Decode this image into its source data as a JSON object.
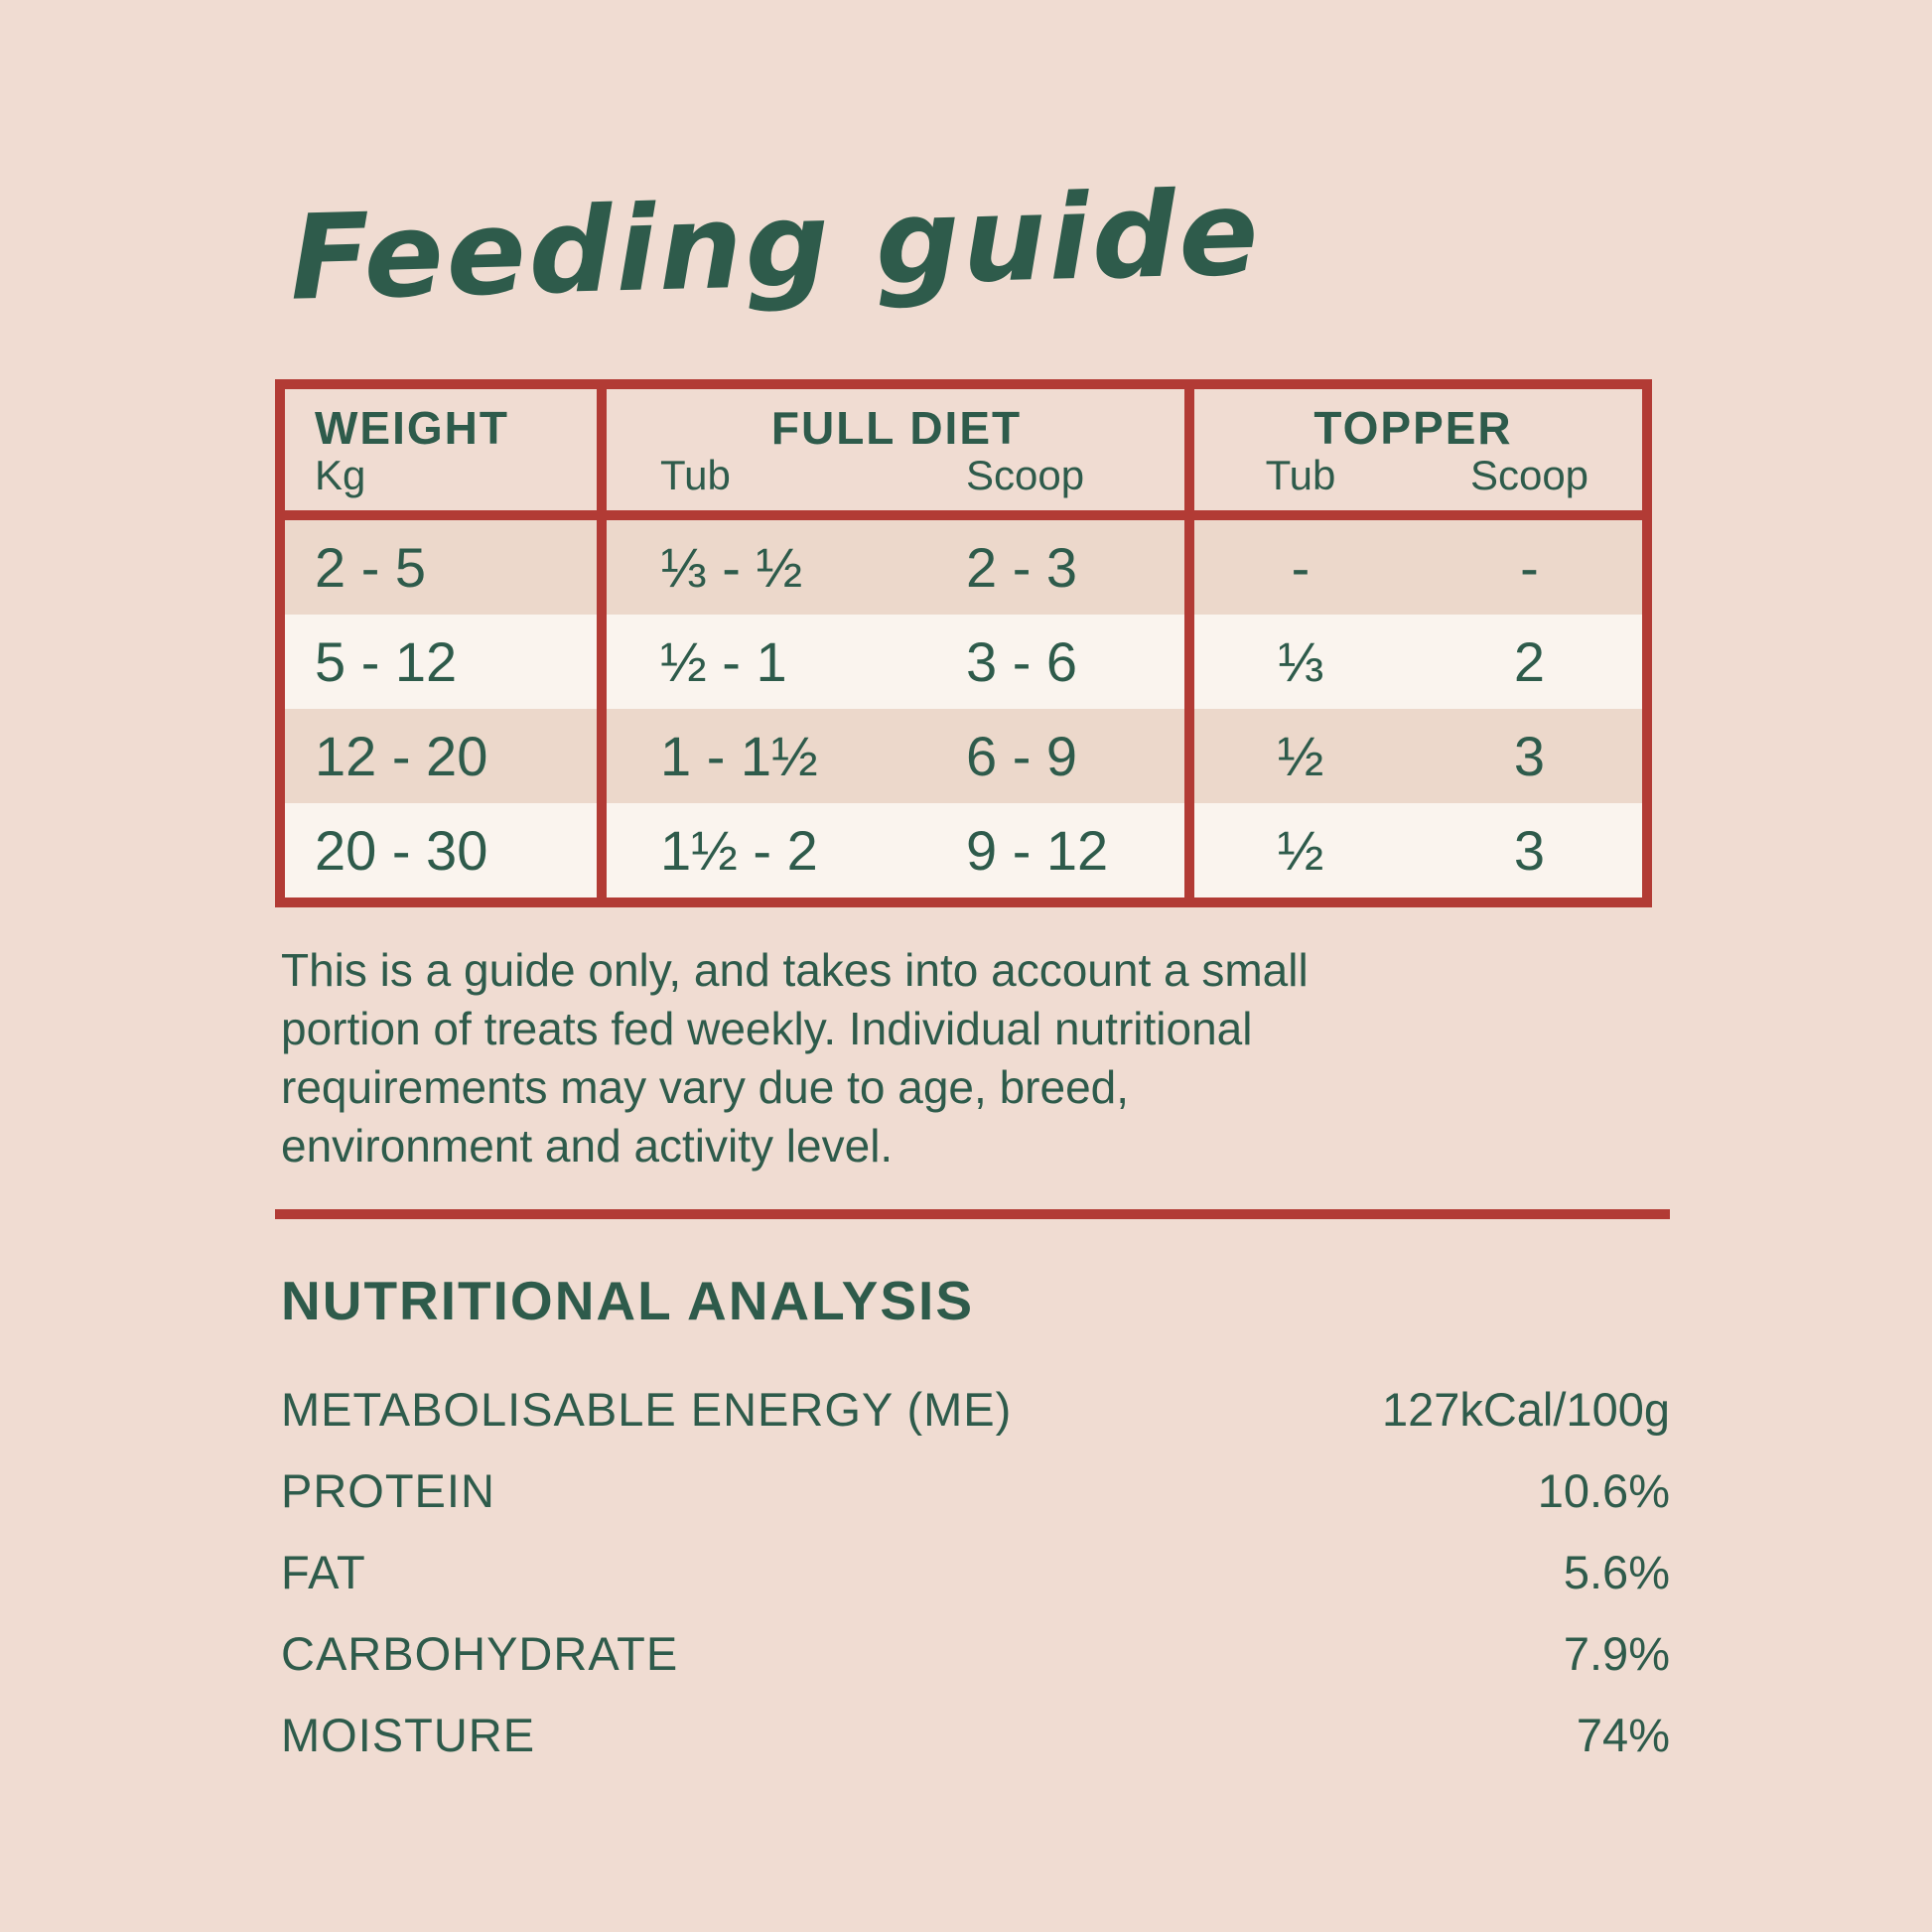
{
  "title": "Feeding guide",
  "colors": {
    "background": "#f0dcd2",
    "border_red": "#b23b35",
    "text_green": "#2e5b4b",
    "row_tan": "#ecd8cb",
    "row_cream": "#faf4ee"
  },
  "feeding_table": {
    "weight_header": {
      "label": "WEIGHT",
      "sub": "Kg"
    },
    "full_diet_header": {
      "label": "FULL DIET",
      "sub_tub": "Tub",
      "sub_scoop": "Scoop"
    },
    "topper_header": {
      "label": "TOPPER",
      "sub_tub": "Tub",
      "sub_scoop": "Scoop"
    },
    "rows": [
      {
        "weight": "2 - 5",
        "full_diet_tub": "⅓ - ½",
        "full_diet_scoop": "2 - 3",
        "topper_tub": "-",
        "topper_scoop": "-"
      },
      {
        "weight": "5 - 12",
        "full_diet_tub": "½ - 1",
        "full_diet_scoop": "3 - 6",
        "topper_tub": "⅓",
        "topper_scoop": "2"
      },
      {
        "weight": "12 - 20",
        "full_diet_tub": "1 - 1½",
        "full_diet_scoop": "6 - 9",
        "topper_tub": "½",
        "topper_scoop": "3"
      },
      {
        "weight": "20 - 30",
        "full_diet_tub": "1½ - 2",
        "full_diet_scoop": "9 - 12",
        "topper_tub": "½",
        "topper_scoop": "3"
      }
    ]
  },
  "disclaimer": {
    "lines": [
      "This is a guide only, and takes into account a small",
      "portion of treats fed weekly. Individual nutritional",
      "requirements may vary due to age, breed,",
      "environment and activity level."
    ]
  },
  "nutrition": {
    "heading": "NUTRITIONAL ANALYSIS",
    "rows": [
      {
        "label": "METABOLISABLE ENERGY (ME)",
        "value": "127kCal/100g"
      },
      {
        "label": "PROTEIN",
        "value": "10.6%"
      },
      {
        "label": "FAT",
        "value": "5.6%"
      },
      {
        "label": "CARBOHYDRATE",
        "value": "7.9%"
      },
      {
        "label": "MOISTURE",
        "value": "74%"
      }
    ]
  }
}
